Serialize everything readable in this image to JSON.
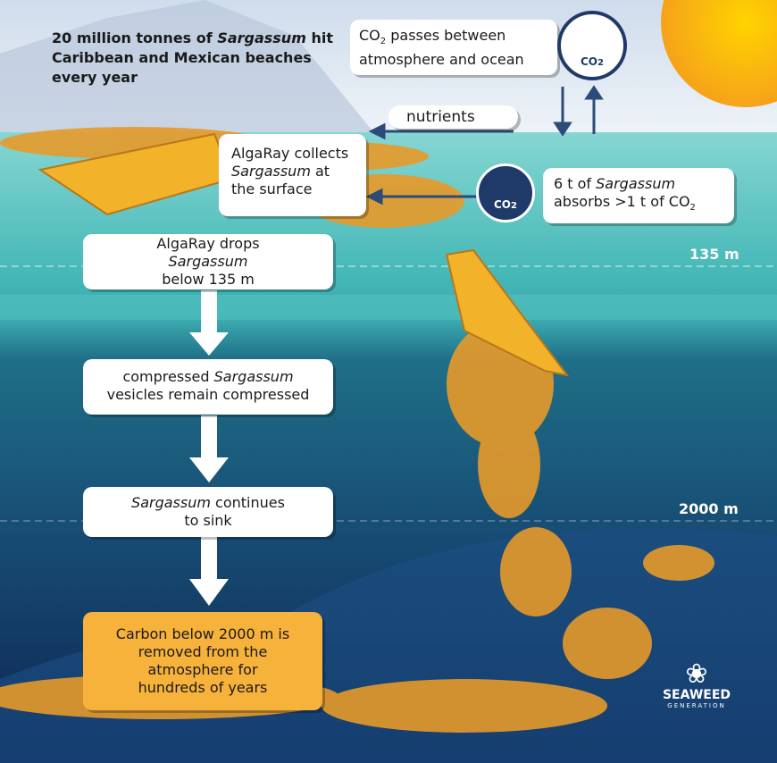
{
  "headline": [
    "20 million tonnes of",
    "Sargassum",
    "hit Caribbean and Mexican beaches every year"
  ],
  "co2_exchange": [
    "CO",
    "2",
    "passes between atmosphere and ocean"
  ],
  "co2_icon_top": [
    "CO",
    "2"
  ],
  "nutrients": "nutrients",
  "collect": [
    "AlgaRay collects",
    "Sargassum",
    "at the surface"
  ],
  "absorb": [
    "6 t of",
    "Sargassum",
    "absorbs >1 t of CO",
    "2"
  ],
  "co2_icon_mid": [
    "CO",
    "2"
  ],
  "depth_labels": [
    "135 m",
    "2000 m"
  ],
  "steps": [
    [
      "AlgaRay drops",
      "Sargassum",
      "below 135 m"
    ],
    [
      "compressed",
      "Sargassum",
      "vesicles remain compressed"
    ],
    [
      "Sargassum",
      "continues to sink"
    ],
    [
      "Carbon below 2000 m is removed from the atmosphere for hundreds of years"
    ]
  ],
  "logo": [
    "SEAWEED",
    "GENERATION"
  ]
}
